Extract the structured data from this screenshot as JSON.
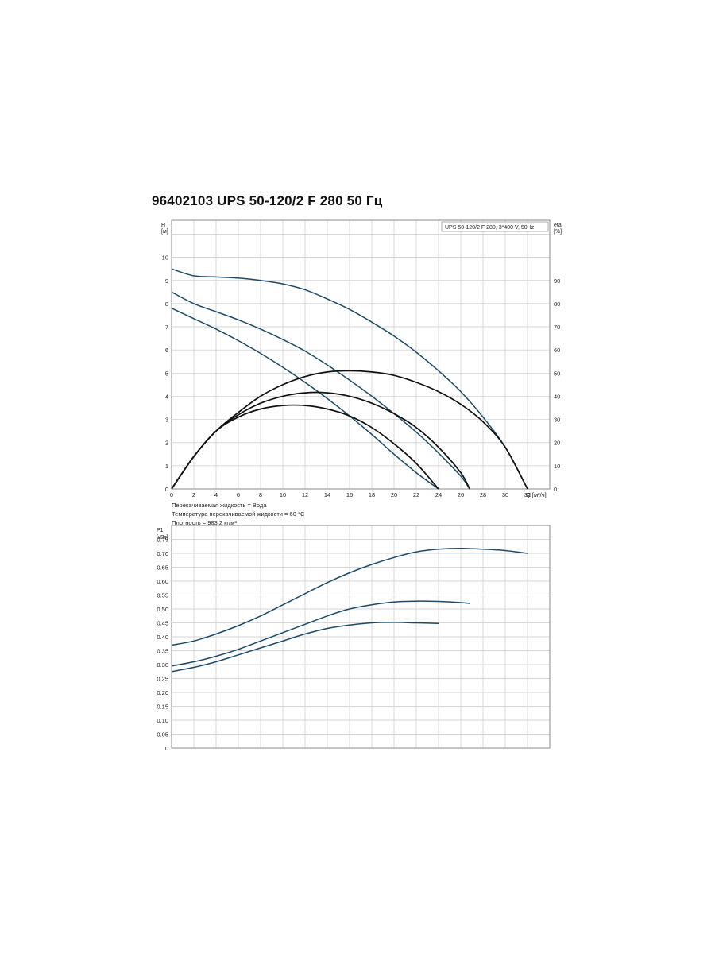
{
  "title": "96402103 UPS 50-120/2 F 280 50 Гц",
  "colors": {
    "curve": "#1c4a66",
    "eta": "#111111",
    "grid": "#c9c9c9",
    "frame": "#8a8a8a"
  },
  "fluid_notes": [
    "Перекачиваемая жидкость = Вода",
    "Температура перекачиваемой жидкости = 60 °C",
    "Плотность = 983.2 кг/м³"
  ],
  "chart_data": [
    {
      "type": "line",
      "legend_text": "UPS 50-120/2 F 280, 3*400 V, 50Hz",
      "legend_position": "top-right",
      "xlabel": "Q [м³/ч]",
      "ylabel": "H\n[м]",
      "y2label": "eta\n[%]",
      "xlim": [
        0,
        34
      ],
      "ylim": [
        0,
        11.6
      ],
      "y2lim": [
        0,
        116
      ],
      "x_ticks": [
        0,
        2,
        4,
        6,
        8,
        10,
        12,
        14,
        16,
        18,
        20,
        22,
        24,
        26,
        28,
        30,
        32
      ],
      "y_ticks": [
        0,
        1,
        2,
        3,
        4,
        5,
        6,
        7,
        8,
        9,
        10
      ],
      "y2_ticks": [
        0,
        10,
        20,
        30,
        40,
        50,
        60,
        70,
        80,
        90
      ],
      "grid": true,
      "series": [
        {
          "kind": "head",
          "x": [
            0,
            2,
            4,
            6,
            8,
            10,
            12,
            14,
            16,
            18,
            20,
            22,
            24,
            26,
            28,
            30,
            32
          ],
          "y": [
            9.5,
            9.2,
            9.15,
            9.1,
            9.0,
            8.85,
            8.6,
            8.2,
            7.75,
            7.2,
            6.6,
            5.9,
            5.1,
            4.2,
            3.1,
            1.8,
            0
          ]
        },
        {
          "kind": "head",
          "x": [
            0,
            2,
            4,
            6,
            8,
            10,
            12,
            14,
            16,
            18,
            20,
            22,
            24,
            26,
            26.8
          ],
          "y": [
            8.5,
            8.0,
            7.65,
            7.3,
            6.9,
            6.45,
            5.95,
            5.35,
            4.7,
            4.0,
            3.25,
            2.45,
            1.55,
            0.55,
            0
          ]
        },
        {
          "kind": "head",
          "x": [
            0,
            2,
            4,
            6,
            8,
            10,
            12,
            14,
            16,
            18,
            20,
            22,
            24
          ],
          "y": [
            7.8,
            7.35,
            6.9,
            6.4,
            5.85,
            5.25,
            4.6,
            3.9,
            3.15,
            2.35,
            1.5,
            0.7,
            0
          ]
        },
        {
          "kind": "eta",
          "x": [
            0,
            2,
            4,
            6,
            8,
            10,
            12,
            14,
            16,
            18,
            20,
            22,
            24,
            26,
            28,
            30,
            32
          ],
          "y": [
            0,
            14,
            25,
            33,
            40,
            45,
            48.5,
            50.5,
            51,
            50.5,
            49,
            46,
            42,
            36.5,
            29,
            18,
            0
          ]
        },
        {
          "kind": "eta",
          "x": [
            0,
            2,
            4,
            6,
            8,
            10,
            12,
            14,
            16,
            18,
            20,
            22,
            24,
            26,
            26.8
          ],
          "y": [
            0,
            14,
            25,
            32,
            37,
            40,
            41.5,
            41.5,
            40,
            37,
            32.5,
            26.5,
            18,
            7,
            0
          ]
        },
        {
          "kind": "eta",
          "x": [
            0,
            2,
            4,
            6,
            8,
            10,
            12,
            14,
            16,
            18,
            20,
            22,
            24
          ],
          "y": [
            0,
            14,
            25,
            31,
            34.5,
            36,
            36,
            34.5,
            31.5,
            26.5,
            19.5,
            11,
            0
          ]
        }
      ]
    },
    {
      "type": "line",
      "ylabel": "P1\n[кВт]",
      "xlim": [
        0,
        34
      ],
      "ylim": [
        0,
        0.8
      ],
      "y_ticks": [
        0,
        0.05,
        0.1,
        0.15,
        0.2,
        0.25,
        0.3,
        0.35,
        0.4,
        0.45,
        0.5,
        0.55,
        0.6,
        0.65,
        0.7,
        0.75
      ],
      "y_tick_labels": [
        "0",
        "0.05",
        "0.10",
        "0.15",
        "0.20",
        "0.25",
        "0.30",
        "0.35",
        "0.40",
        "0.45",
        "0.50",
        "0.55",
        "0.60",
        "0.65",
        "0.70",
        "0.75"
      ],
      "grid": true,
      "series": [
        {
          "kind": "power",
          "x": [
            0,
            2,
            4,
            6,
            8,
            10,
            12,
            14,
            16,
            18,
            20,
            22,
            24,
            26,
            28,
            30,
            32
          ],
          "y": [
            0.37,
            0.385,
            0.41,
            0.44,
            0.475,
            0.515,
            0.555,
            0.595,
            0.63,
            0.66,
            0.685,
            0.705,
            0.715,
            0.718,
            0.715,
            0.71,
            0.7
          ]
        },
        {
          "kind": "power",
          "x": [
            0,
            2,
            4,
            6,
            8,
            10,
            12,
            14,
            16,
            18,
            20,
            22,
            24,
            26,
            26.8
          ],
          "y": [
            0.295,
            0.31,
            0.33,
            0.355,
            0.385,
            0.415,
            0.445,
            0.475,
            0.5,
            0.515,
            0.525,
            0.528,
            0.527,
            0.523,
            0.52
          ]
        },
        {
          "kind": "power",
          "x": [
            0,
            2,
            4,
            6,
            8,
            10,
            12,
            14,
            16,
            18,
            20,
            22,
            24
          ],
          "y": [
            0.275,
            0.29,
            0.31,
            0.335,
            0.36,
            0.385,
            0.41,
            0.43,
            0.442,
            0.45,
            0.452,
            0.45,
            0.448
          ]
        }
      ]
    }
  ]
}
